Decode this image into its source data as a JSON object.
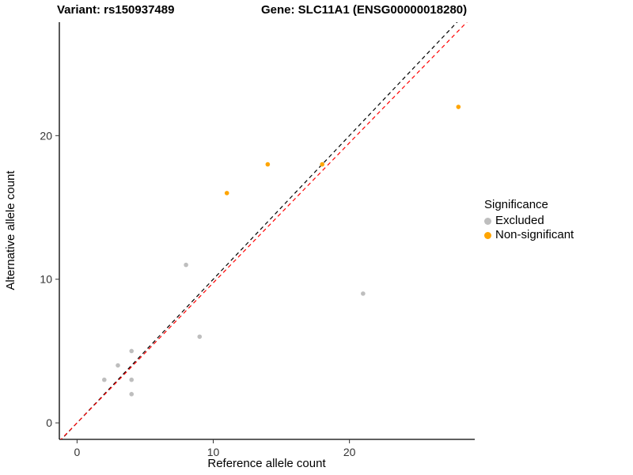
{
  "titles": {
    "variant": "Variant: rs150937489",
    "gene": "Gene: SLC11A1 (ENSG00000018280)"
  },
  "axes": {
    "x_label": "Reference allele count",
    "y_label": "Alternative allele count",
    "x_ticks": [
      0,
      10,
      20
    ],
    "y_ticks": [
      0,
      10,
      20
    ]
  },
  "legend": {
    "title": "Significance",
    "items": [
      {
        "label": "Excluded",
        "color": "#bebebe"
      },
      {
        "label": "Non-significant",
        "color": "#FFA500"
      }
    ]
  },
  "chart_data": {
    "type": "scatter",
    "title": "Variant: rs150937489 / Gene: SLC11A1 (ENSG00000018280)",
    "xlabel": "Reference allele count",
    "ylabel": "Alternative allele count",
    "xlim": [
      -1.3,
      29.2
    ],
    "ylim": [
      -1.15,
      27.9
    ],
    "grid": false,
    "legend_position": "right",
    "series": [
      {
        "name": "Excluded",
        "color": "#bebebe",
        "points": [
          [
            2,
            3
          ],
          [
            3,
            4
          ],
          [
            4,
            5
          ],
          [
            4,
            3
          ],
          [
            4,
            2
          ],
          [
            8,
            11
          ],
          [
            9,
            6
          ],
          [
            21,
            9
          ]
        ]
      },
      {
        "name": "Non-significant",
        "color": "#FFA500",
        "points": [
          [
            11,
            16
          ],
          [
            14,
            18
          ],
          [
            18,
            18
          ],
          [
            28,
            22
          ]
        ]
      }
    ],
    "lines": [
      {
        "name": "identity",
        "color": "#000000",
        "slope": 1,
        "intercept": 0,
        "style": "dashed"
      },
      {
        "name": "fit",
        "color": "#ff0000",
        "slope": 0.975,
        "intercept": 0,
        "style": "dashed"
      }
    ]
  }
}
